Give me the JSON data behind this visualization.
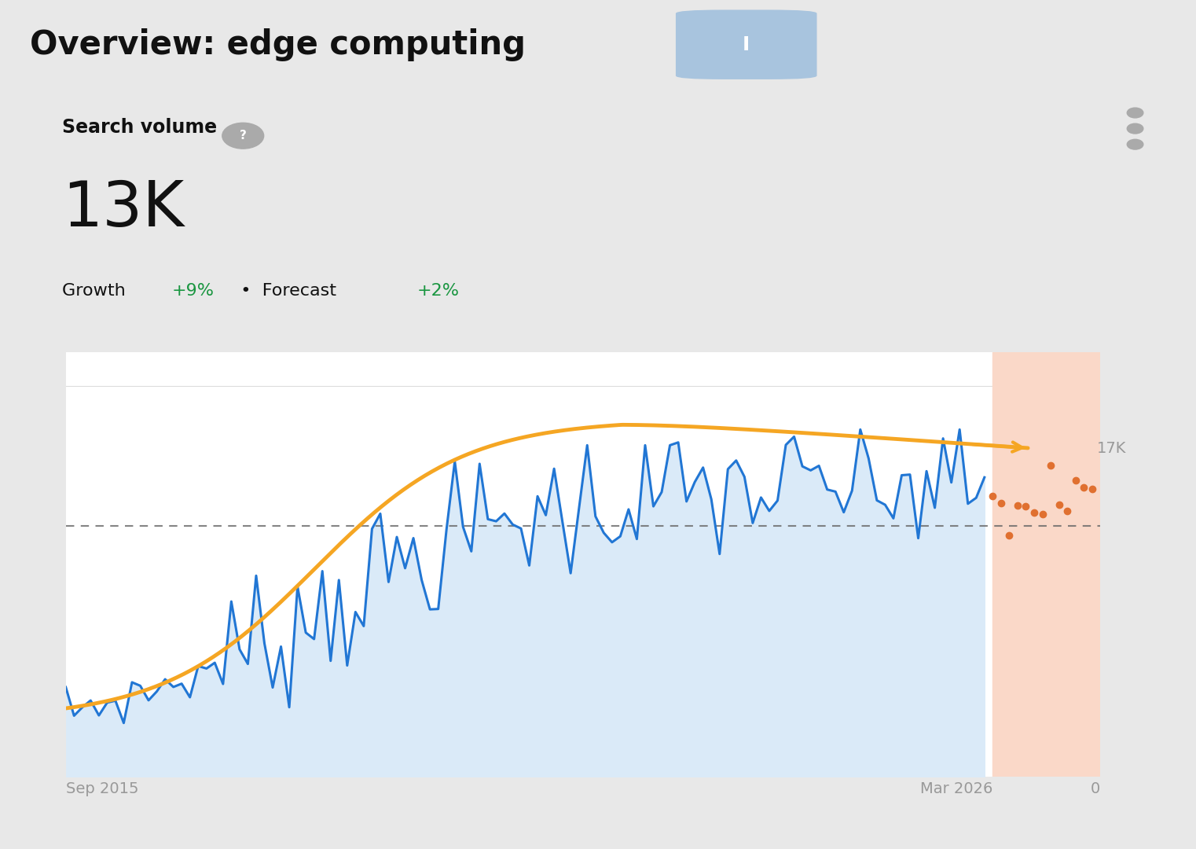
{
  "title": "Overview: edge computing",
  "search_volume_label": "Search volume",
  "search_volume_value": "13K",
  "growth_label": "Growth",
  "growth_value": "+9%",
  "forecast_label": "Forecast",
  "forecast_value": "+2%",
  "x_label_left": "Sep 2015",
  "x_label_right": "Mar 2026",
  "y_label_right": "17K",
  "y_label_far_right": "0",
  "background_color": "#e8e8e8",
  "card_background": "#ffffff",
  "header_bg": "#d8d8d8",
  "blue_line_color": "#2176d4",
  "blue_fill_color": "#daeaf8",
  "orange_curve_color": "#f5a623",
  "forecast_dot_color": "#e07030",
  "forecast_fill_color": "#fad8c8",
  "dashed_line_color": "#666666",
  "growth_color": "#1a9641",
  "text_color_dark": "#111111",
  "text_color_gray": "#999999",
  "info_icon_bg": "#a8c4de",
  "dashed_level": 13.0,
  "y_max": 22,
  "n_historical": 112,
  "n_forecast": 13
}
